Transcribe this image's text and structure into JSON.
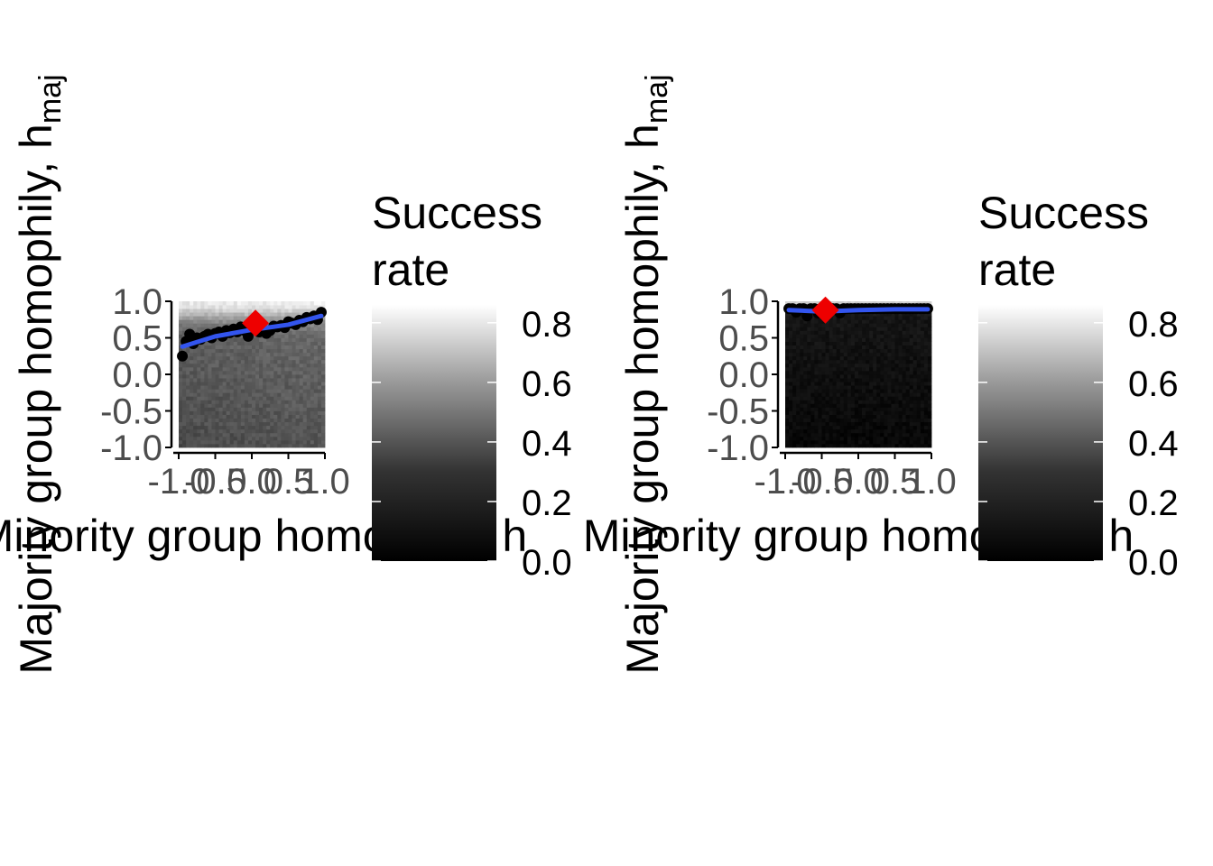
{
  "chart_data": [
    {
      "type": "heatmap",
      "xlabel": "Minority group homophily, h",
      "ylabel_main": "Majority group homophily, h",
      "ylabel_sub": "maj",
      "xlim": [
        -1.0,
        1.0
      ],
      "ylim": [
        -1.0,
        1.0
      ],
      "x_ticks": [
        "-1.0",
        "-0.5",
        "0.0",
        "0.5",
        "1.0"
      ],
      "y_ticks": [
        "1.0",
        "0.5",
        "0.0",
        "-0.5",
        "-1.0"
      ],
      "heatmap_model": {
        "base": 0.36,
        "xcoef": 0.02,
        "ycoef": 0.05,
        "peak": 0.88,
        "peak_width": 0.18,
        "noise": 0.05
      },
      "points": {
        "x": [
          -0.95,
          -0.9,
          -0.85,
          -0.8,
          -0.75,
          -0.7,
          -0.65,
          -0.6,
          -0.55,
          -0.5,
          -0.45,
          -0.4,
          -0.35,
          -0.3,
          -0.25,
          -0.2,
          -0.15,
          -0.1,
          -0.05,
          0.0,
          0.05,
          0.1,
          0.15,
          0.2,
          0.25,
          0.3,
          0.35,
          0.4,
          0.45,
          0.5,
          0.55,
          0.6,
          0.65,
          0.7,
          0.75,
          0.8,
          0.85,
          0.9,
          0.95
        ],
        "y": [
          0.25,
          0.45,
          0.55,
          0.42,
          0.5,
          0.48,
          0.52,
          0.55,
          0.5,
          0.56,
          0.58,
          0.52,
          0.6,
          0.57,
          0.62,
          0.58,
          0.65,
          0.6,
          0.52,
          0.62,
          0.7,
          0.58,
          0.62,
          0.56,
          0.6,
          0.66,
          0.65,
          0.67,
          0.64,
          0.72,
          0.7,
          0.68,
          0.74,
          0.72,
          0.78,
          0.76,
          0.8,
          0.75,
          0.85
        ]
      },
      "fit_line": {
        "x": [
          -0.95,
          -0.5,
          0.0,
          0.5,
          0.95
        ],
        "y": [
          0.38,
          0.52,
          0.61,
          0.68,
          0.8
        ]
      },
      "optimum": {
        "x": 0.05,
        "y": 0.7
      },
      "legend": {
        "title_line1": "Success",
        "title_line2": "rate",
        "ticks": [
          "0.8",
          "0.6",
          "0.4",
          "0.2",
          "0.0"
        ],
        "tick_values": [
          0.8,
          0.6,
          0.4,
          0.2,
          0.0
        ],
        "range": [
          0.0,
          0.86
        ]
      }
    },
    {
      "type": "heatmap",
      "xlabel": "Minority group homophily, h",
      "ylabel_main": "Majority group homophily, h",
      "ylabel_sub": "maj",
      "xlim": [
        -1.0,
        1.0
      ],
      "ylim": [
        -1.0,
        1.0
      ],
      "x_ticks": [
        "-1.0",
        "-0.5",
        "0.0",
        "0.5",
        "1.0"
      ],
      "y_ticks": [
        "1.0",
        "0.5",
        "0.0",
        "-0.5",
        "-1.0"
      ],
      "heatmap_model": {
        "base": 0.06,
        "xcoef": 0.0,
        "ycoef": 0.03,
        "peak": 0.85,
        "peak_width": 0.06,
        "noise": 0.03
      },
      "points": {
        "x": [
          -0.95,
          -0.9,
          -0.85,
          -0.8,
          -0.75,
          -0.7,
          -0.65,
          -0.6,
          -0.55,
          -0.5,
          -0.45,
          -0.4,
          -0.35,
          -0.3,
          -0.25,
          -0.2,
          -0.15,
          -0.1,
          -0.05,
          0.0,
          0.05,
          0.1,
          0.15,
          0.2,
          0.25,
          0.3,
          0.35,
          0.4,
          0.45,
          0.5,
          0.55,
          0.6,
          0.65,
          0.7,
          0.75,
          0.8,
          0.85,
          0.9,
          0.95
        ],
        "y": [
          0.9,
          0.9,
          0.85,
          0.9,
          0.9,
          0.8,
          0.9,
          0.9,
          0.84,
          0.9,
          0.9,
          0.88,
          0.9,
          0.9,
          0.84,
          0.9,
          0.9,
          0.9,
          0.9,
          0.9,
          0.9,
          0.9,
          0.9,
          0.9,
          0.9,
          0.9,
          0.9,
          0.9,
          0.9,
          0.9,
          0.9,
          0.9,
          0.9,
          0.9,
          0.9,
          0.9,
          0.9,
          0.9,
          0.9
        ]
      },
      "fit_line": {
        "x": [
          -0.95,
          -0.5,
          0.0,
          0.5,
          0.95
        ],
        "y": [
          0.88,
          0.86,
          0.88,
          0.89,
          0.89
        ]
      },
      "optimum": {
        "x": -0.45,
        "y": 0.88
      },
      "legend": {
        "title_line1": "Success",
        "title_line2": "rate",
        "ticks": [
          "0.8",
          "0.6",
          "0.4",
          "0.2",
          "0.0"
        ],
        "tick_values": [
          0.8,
          0.6,
          0.4,
          0.2,
          0.0
        ],
        "range": [
          0.0,
          0.86
        ]
      }
    }
  ],
  "colors": {
    "fit_line": "#3355ee",
    "points": "#000000",
    "optimum": "#ee0000",
    "axis": "#000000",
    "tick_text": "#4d4d4d"
  }
}
